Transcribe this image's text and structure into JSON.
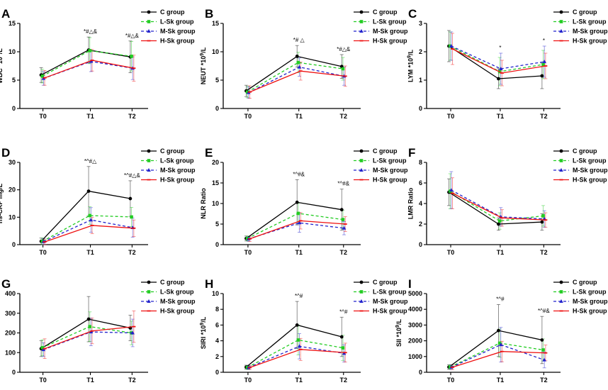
{
  "figure": {
    "panels": [
      "A",
      "B",
      "C",
      "D",
      "E",
      "F",
      "G",
      "H",
      "I"
    ]
  },
  "chart_data": [
    {
      "panel": "A",
      "type": "line",
      "ylabel": "WBC *10^9/L",
      "categories": [
        "T0",
        "T1",
        "T2"
      ],
      "ylim": [
        0,
        15
      ],
      "yticks": [
        0,
        5,
        10,
        15
      ],
      "series": [
        {
          "name": "C group",
          "values": [
            5.9,
            10.3,
            9.1
          ],
          "err": [
            1.3,
            2.3,
            2.8
          ]
        },
        {
          "name": "L-Sk group",
          "values": [
            5.7,
            10.2,
            9.2
          ],
          "err": [
            1.2,
            2.3,
            2.6
          ]
        },
        {
          "name": "M-Sk group",
          "values": [
            5.3,
            8.3,
            7.1
          ],
          "err": [
            1.2,
            1.8,
            2.0
          ]
        },
        {
          "name": "H-Sk group",
          "values": [
            5.4,
            8.5,
            7.1
          ],
          "err": [
            1.3,
            1.9,
            2.3
          ]
        }
      ],
      "annotations": [
        {
          "category": "T1",
          "text": "*#△&"
        },
        {
          "category": "T2",
          "text": "*#△&"
        }
      ]
    },
    {
      "panel": "B",
      "type": "line",
      "ylabel": "NEUT *10^9/L",
      "categories": [
        "T0",
        "T1",
        "T2"
      ],
      "ylim": [
        0,
        15
      ],
      "yticks": [
        0,
        5,
        10,
        15
      ],
      "series": [
        {
          "name": "C group",
          "values": [
            3.1,
            9.2,
            7.4
          ],
          "err": [
            1.0,
            1.9,
            2.1
          ]
        },
        {
          "name": "L-Sk group",
          "values": [
            2.9,
            8.1,
            7.0
          ],
          "err": [
            1.0,
            1.8,
            2.0
          ]
        },
        {
          "name": "M-Sk group",
          "values": [
            2.8,
            7.3,
            5.7
          ],
          "err": [
            1.0,
            1.6,
            1.6
          ]
        },
        {
          "name": "H-Sk group",
          "values": [
            2.9,
            6.6,
            5.7
          ],
          "err": [
            1.1,
            1.6,
            1.8
          ]
        }
      ],
      "annotations": [
        {
          "category": "T1",
          "text": "*# △"
        },
        {
          "category": "T2",
          "text": "*#△&"
        }
      ]
    },
    {
      "panel": "C",
      "type": "line",
      "ylabel": "LYM *10^9/L",
      "categories": [
        "T0",
        "T1",
        "T2"
      ],
      "ylim": [
        0,
        3
      ],
      "yticks": [
        0,
        1,
        2,
        3
      ],
      "series": [
        {
          "name": "C group",
          "values": [
            2.2,
            1.05,
            1.15
          ],
          "err": [
            0.55,
            0.35,
            0.45
          ]
        },
        {
          "name": "L-Sk group",
          "values": [
            2.2,
            1.3,
            1.55
          ],
          "err": [
            0.5,
            0.5,
            0.5
          ]
        },
        {
          "name": "M-Sk group",
          "values": [
            2.2,
            1.4,
            1.65
          ],
          "err": [
            0.5,
            0.55,
            0.55
          ]
        },
        {
          "name": "H-Sk group",
          "values": [
            2.1,
            1.25,
            1.5
          ],
          "err": [
            0.55,
            0.45,
            0.45
          ]
        }
      ],
      "annotations": [
        {
          "category": "T1",
          "text": "*"
        },
        {
          "category": "T2",
          "text": "*"
        }
      ]
    },
    {
      "panel": "D",
      "type": "line",
      "ylabel": "hs-CRP mg/L",
      "categories": [
        "T0",
        "T1",
        "T2"
      ],
      "ylim": [
        0,
        30
      ],
      "yticks": [
        0,
        10,
        20,
        30
      ],
      "series": [
        {
          "name": "C group",
          "values": [
            1.2,
            19.5,
            16.8
          ],
          "err": [
            1.2,
            9.0,
            6.5
          ]
        },
        {
          "name": "L-Sk group",
          "values": [
            1.2,
            10.6,
            10.1
          ],
          "err": [
            1.2,
            3.2,
            3.5
          ]
        },
        {
          "name": "M-Sk group",
          "values": [
            1.1,
            9.0,
            6.2
          ],
          "err": [
            1.1,
            4.5,
            3.5
          ]
        },
        {
          "name": "H-Sk group",
          "values": [
            1.0,
            7.0,
            6.0
          ],
          "err": [
            1.0,
            3.0,
            3.0
          ]
        }
      ],
      "annotations": [
        {
          "category": "T1",
          "text": "*^#△"
        },
        {
          "category": "T2",
          "text": "*^#△&"
        }
      ]
    },
    {
      "panel": "E",
      "type": "line",
      "ylabel": "NLR Ratio",
      "categories": [
        "T0",
        "T1",
        "T2"
      ],
      "ylim": [
        0,
        20
      ],
      "yticks": [
        0,
        5,
        10,
        15,
        20
      ],
      "series": [
        {
          "name": "C group",
          "values": [
            1.5,
            10.3,
            8.5
          ],
          "err": [
            0.6,
            5.5,
            5.0
          ]
        },
        {
          "name": "L-Sk group",
          "values": [
            1.5,
            7.6,
            6.1
          ],
          "err": [
            0.6,
            2.5,
            2.3
          ]
        },
        {
          "name": "M-Sk group",
          "values": [
            1.4,
            5.3,
            4.0
          ],
          "err": [
            0.6,
            2.3,
            1.6
          ]
        },
        {
          "name": "H-Sk group",
          "values": [
            1.4,
            5.8,
            5.0
          ],
          "err": [
            0.6,
            2.0,
            1.8
          ]
        }
      ],
      "annotations": [
        {
          "category": "T1",
          "text": "*^#&"
        },
        {
          "category": "T2",
          "text": "*^#&"
        }
      ]
    },
    {
      "panel": "F",
      "type": "line",
      "ylabel": "LMR Ratio",
      "categories": [
        "T0",
        "T1",
        "T2"
      ],
      "ylim": [
        0,
        8
      ],
      "yticks": [
        0,
        2,
        4,
        6,
        8
      ],
      "series": [
        {
          "name": "C group",
          "values": [
            5.1,
            2.0,
            2.2
          ],
          "err": [
            1.3,
            0.6,
            0.8
          ]
        },
        {
          "name": "L-Sk group",
          "values": [
            5.2,
            2.3,
            2.8
          ],
          "err": [
            1.7,
            0.8,
            1.0
          ]
        },
        {
          "name": "M-Sk group",
          "values": [
            5.3,
            2.7,
            2.5
          ],
          "err": [
            1.8,
            0.9,
            0.8
          ]
        },
        {
          "name": "H-Sk group",
          "values": [
            5.0,
            2.6,
            2.4
          ],
          "err": [
            1.5,
            0.8,
            0.7
          ]
        }
      ],
      "annotations": []
    },
    {
      "panel": "G",
      "type": "line",
      "ylabel": "PLR Ratio",
      "categories": [
        "T0",
        "T1",
        "T2"
      ],
      "ylim": [
        0,
        400
      ],
      "yticks": [
        0,
        100,
        200,
        300,
        400
      ],
      "series": [
        {
          "name": "C group",
          "values": [
            120,
            270,
            225
          ],
          "err": [
            40,
            115,
            65
          ]
        },
        {
          "name": "L-Sk group",
          "values": [
            125,
            232,
            200
          ],
          "err": [
            40,
            75,
            60
          ]
        },
        {
          "name": "M-Sk group",
          "values": [
            115,
            205,
            200
          ],
          "err": [
            35,
            70,
            70
          ]
        },
        {
          "name": "H-Sk group",
          "values": [
            120,
            210,
            232
          ],
          "err": [
            50,
            65,
            80
          ]
        }
      ],
      "annotations": []
    },
    {
      "panel": "H",
      "type": "line",
      "ylabel": "SIRI *10^9/L",
      "categories": [
        "T0",
        "T1",
        "T2"
      ],
      "ylim": [
        0,
        10
      ],
      "yticks": [
        0,
        2,
        4,
        6,
        8,
        10
      ],
      "series": [
        {
          "name": "C group",
          "values": [
            0.65,
            6.0,
            4.5
          ],
          "err": [
            0.25,
            3.0,
            2.5
          ]
        },
        {
          "name": "L-Sk group",
          "values": [
            0.6,
            4.1,
            3.1
          ],
          "err": [
            0.25,
            1.9,
            1.6
          ]
        },
        {
          "name": "M-Sk group",
          "values": [
            0.6,
            3.3,
            2.4
          ],
          "err": [
            0.25,
            1.6,
            1.1
          ]
        },
        {
          "name": "H-Sk group",
          "values": [
            0.6,
            2.9,
            2.5
          ],
          "err": [
            0.25,
            1.4,
            1.2
          ]
        }
      ],
      "annotations": [
        {
          "category": "T1",
          "text": "*^#"
        },
        {
          "category": "T2",
          "text": "*^#"
        }
      ]
    },
    {
      "panel": "I",
      "type": "line",
      "ylabel": "SII *10^9/L",
      "categories": [
        "T0",
        "T1",
        "T2"
      ],
      "ylim": [
        0,
        5000
      ],
      "yticks": [
        0,
        1000,
        2000,
        3000,
        4000,
        5000
      ],
      "series": [
        {
          "name": "C group",
          "values": [
            330,
            2650,
            2050
          ],
          "err": [
            150,
            1650,
            1500
          ]
        },
        {
          "name": "L-Sk group",
          "values": [
            330,
            1850,
            1420
          ],
          "err": [
            150,
            900,
            700
          ]
        },
        {
          "name": "M-Sk group",
          "values": [
            320,
            1750,
            780
          ],
          "err": [
            150,
            1100,
            500
          ]
        },
        {
          "name": "H-Sk group",
          "values": [
            320,
            1320,
            1230
          ],
          "err": [
            150,
            650,
            500
          ]
        }
      ],
      "annotations": [
        {
          "category": "T1",
          "text": "*^#"
        },
        {
          "category": "T2",
          "text": "*^#&"
        }
      ]
    }
  ],
  "colors": {
    "C group": "#000000",
    "L-Sk group": "#22cc22",
    "M-Sk group": "#2222cc",
    "H-Sk group": "#ee1111",
    "axis": "#000000",
    "error_bar": "#999999"
  },
  "markers": {
    "C group": "circle",
    "L-Sk group": "square",
    "M-Sk group": "triangle",
    "H-Sk group": "line"
  }
}
